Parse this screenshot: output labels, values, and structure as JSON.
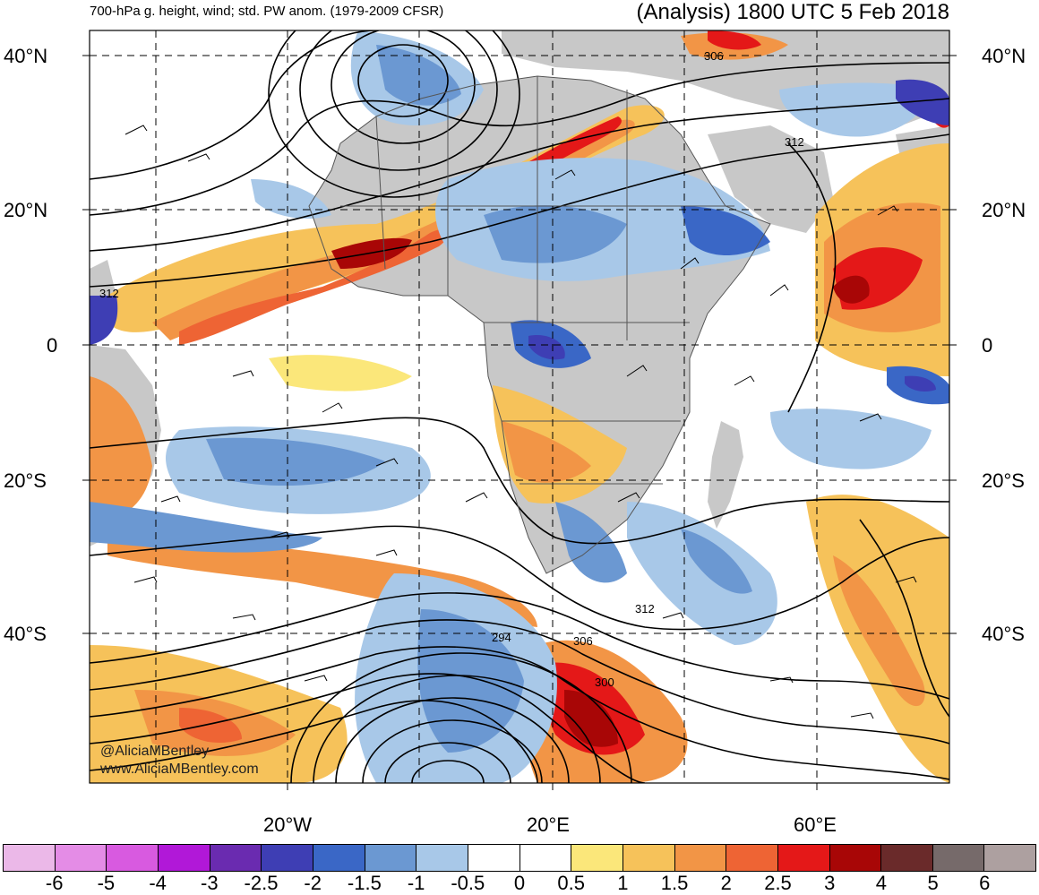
{
  "header": {
    "title_left": "700-hPa g. height, wind; std. PW anom. (1979-2009 CFSR)",
    "title_right": "(Analysis) 1800 UTC 5 Feb 2018"
  },
  "axes": {
    "lat_labels": [
      "40°N",
      "20°N",
      "0",
      "20°S",
      "40°S"
    ],
    "lon_labels": [
      "20°W",
      "20°E",
      "60°E"
    ]
  },
  "contour_labels": [
    "306",
    "312",
    "312",
    "312",
    "294",
    "306",
    "300"
  ],
  "colorbar": {
    "colors": [
      "#ebb8e8",
      "#e48ce6",
      "#d85ae0",
      "#b118d8",
      "#6a2bb0",
      "#3e3eb4",
      "#3a67c6",
      "#6b98d2",
      "#a8c8e8",
      "#ffffff",
      "#ffffff",
      "#fbe77a",
      "#f6c25a",
      "#f29546",
      "#ee6434",
      "#e41818",
      "#a80606",
      "#6a2a2a",
      "#766a6a",
      "#ada0a0"
    ],
    "labels": [
      "-6",
      "-5",
      "-4",
      "-3",
      "-2.5",
      "-2",
      "-1.5",
      "-1",
      "-0.5",
      "0",
      "0.5",
      "1",
      "1.5",
      "2",
      "2.5",
      "3",
      "4",
      "5",
      "6"
    ]
  },
  "credits": {
    "handle": "@AliciaMBentley",
    "site": "www.AliciaMBentley.com"
  },
  "palette": {
    "land": "#c8c8c8",
    "ocean": "#ffffff"
  }
}
